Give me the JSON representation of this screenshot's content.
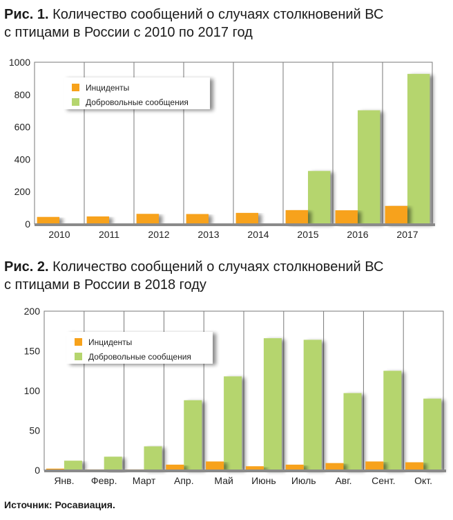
{
  "figures": [
    {
      "number_label": "Рис. 1.",
      "title_line1": "Количество сообщений о случаях столкновений ВС",
      "title_line2": "с птицами в России с 2010 по 2017 год"
    },
    {
      "number_label": "Рис. 2.",
      "title_line1": "Количество сообщений о случаях столкновений ВС",
      "title_line2": "с птицами в России в 2018 году"
    }
  ],
  "source": "Источник: Росавиация.",
  "colors": {
    "incidents": "#f7a21b",
    "voluntary": "#b5d56e",
    "grid": "#777777",
    "panel_bg": "#ffffff",
    "axis": "#333333"
  },
  "chart_data": [
    {
      "type": "bar",
      "categories": [
        "2010",
        "2011",
        "2012",
        "2013",
        "2014",
        "2015",
        "2016",
        "2017"
      ],
      "series": [
        {
          "name": "Инциденты",
          "values": [
            44,
            47,
            63,
            62,
            69,
            86,
            85,
            112
          ]
        },
        {
          "name": "Добровольные сообщения",
          "values": [
            0,
            0,
            0,
            0,
            0,
            328,
            703,
            928
          ]
        }
      ],
      "yticks": [
        0,
        200,
        400,
        600,
        800,
        1000
      ],
      "ylim": [
        0,
        1000
      ],
      "legend": "top-left",
      "grid": "vertical",
      "title": "Количество сообщений о случаях столкновений ВС с птицами в России с 2010 по 2017 год"
    },
    {
      "type": "bar",
      "categories": [
        "Янв.",
        "Февр.",
        "Март",
        "Апр.",
        "Май",
        "Июнь",
        "Июль",
        "Авг.",
        "Сент.",
        "Окт."
      ],
      "series": [
        {
          "name": "Инциденты",
          "values": [
            2,
            1,
            1,
            7,
            11,
            5,
            7,
            9,
            11,
            10
          ]
        },
        {
          "name": "Добровольные сообщения",
          "values": [
            12,
            17,
            30,
            88,
            118,
            166,
            164,
            97,
            125,
            90
          ]
        }
      ],
      "yticks": [
        0,
        50,
        100,
        150,
        200
      ],
      "ylim": [
        0,
        200
      ],
      "legend": "top-left",
      "grid": "vertical",
      "title": "Количество сообщений о случаях столкновений ВС с птицами в России в 2018 году"
    }
  ]
}
